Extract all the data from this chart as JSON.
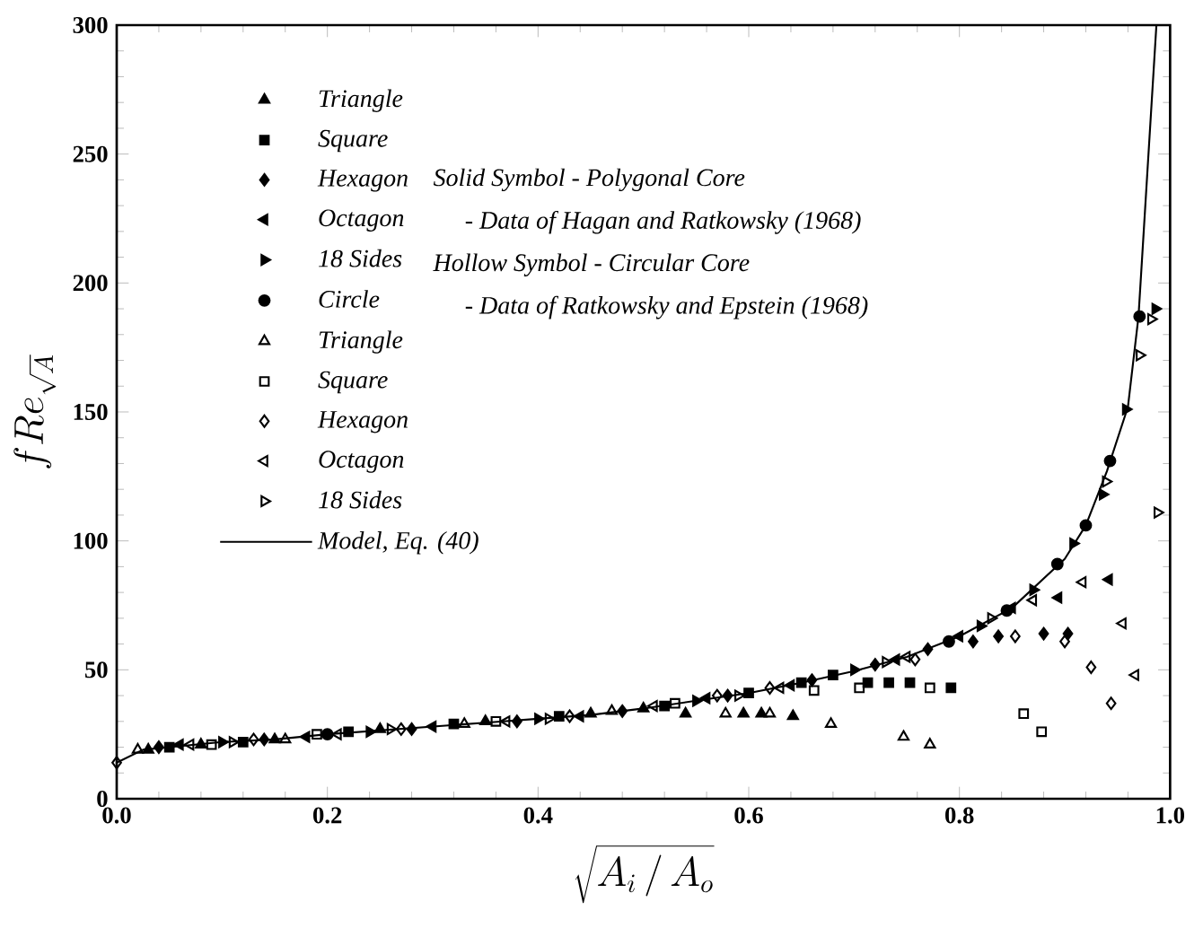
{
  "chart_data": {
    "type": "scatter",
    "xlabel": "\\sqrt{A_i\\,/\\,A_o}",
    "ylabel": "fRe_{\\sqrt{A}}",
    "xlim": [
      0,
      1.0
    ],
    "ylim": [
      0,
      300
    ],
    "xticks": [
      {
        "value": 0,
        "label": "0.0"
      },
      {
        "value": 0.2,
        "label": "0.2"
      },
      {
        "value": 0.4,
        "label": "0.4"
      },
      {
        "value": 0.6,
        "label": "0.6"
      },
      {
        "value": 0.8,
        "label": "0.8"
      },
      {
        "value": 1.0,
        "label": "1.0"
      }
    ],
    "yticks": [
      0,
      50,
      100,
      150,
      200,
      250,
      300
    ],
    "legend": "top left",
    "annotations": [
      "Solid Symbol - Polygonal Core",
      "- Data of Hagan and Ratkowsky (1968)",
      "Hollow Symbol - Circular Core",
      "- Data of Ratkowsky and Epstein (1968)"
    ],
    "series": [
      {
        "name": "Triangle",
        "color": "#000000",
        "marker": "triangle",
        "x": [
          0.03,
          0.08,
          0.15,
          0.25,
          0.35,
          0.45,
          0.5,
          0.54,
          0.595,
          0.612,
          0.642
        ],
        "values": [
          19,
          21,
          23,
          27,
          30,
          33,
          35,
          33,
          33,
          33,
          32
        ]
      },
      {
        "name": "Square",
        "color": "#000000",
        "marker": "square",
        "x": [
          0.05,
          0.12,
          0.22,
          0.32,
          0.42,
          0.52,
          0.6,
          0.65,
          0.68,
          0.713,
          0.733,
          0.753,
          0.792
        ],
        "values": [
          20,
          22,
          26,
          29,
          32,
          36,
          41,
          45,
          48,
          45,
          45,
          45,
          43
        ]
      },
      {
        "name": "Hexagon",
        "color": "#000000",
        "marker": "diamond",
        "x": [
          0.04,
          0.14,
          0.28,
          0.38,
          0.48,
          0.58,
          0.66,
          0.72,
          0.77,
          0.813,
          0.837,
          0.88,
          0.903
        ],
        "values": [
          20,
          23,
          27,
          30,
          34,
          40,
          46,
          52,
          58,
          61,
          63,
          64,
          64
        ]
      },
      {
        "name": "Octagon",
        "color": "#000000",
        "marker": "triangle-left",
        "x": [
          0.06,
          0.18,
          0.3,
          0.44,
          0.56,
          0.64,
          0.74,
          0.8,
          0.85,
          0.894,
          0.942
        ],
        "values": [
          21,
          24,
          28,
          32,
          39,
          44,
          54,
          63,
          74,
          78,
          85
        ]
      },
      {
        "name": "18 Sides",
        "color": "#000000",
        "marker": "triangle-right",
        "x": [
          0.1,
          0.24,
          0.4,
          0.55,
          0.7,
          0.82,
          0.87,
          0.908,
          0.936,
          0.958,
          0.986
        ],
        "values": [
          22,
          26,
          31,
          38,
          50,
          67,
          81,
          99,
          118,
          151,
          190
        ]
      },
      {
        "name": "Circle",
        "color": "#000000",
        "marker": "circle",
        "x": [
          0.2,
          0.5,
          0.7,
          0.79,
          0.845,
          0.893,
          0.92,
          0.943,
          0.971
        ],
        "values": [
          25,
          null,
          null,
          61,
          73,
          91,
          106,
          131,
          187
        ]
      },
      {
        "name": "Triangle",
        "color": "#000000",
        "marker": "triangle-open",
        "x": [
          0.02,
          0.16,
          0.33,
          0.47,
          0.578,
          0.62,
          0.678,
          0.747,
          0.772
        ],
        "values": [
          19,
          23,
          29,
          34,
          33,
          33,
          29,
          24,
          21
        ]
      },
      {
        "name": "Square",
        "color": "#000000",
        "marker": "square-open",
        "x": [
          0.09,
          0.19,
          0.36,
          0.53,
          0.662,
          0.705,
          0.772,
          0.861,
          0.878
        ],
        "values": [
          21,
          25,
          30,
          37,
          42,
          43,
          43,
          33,
          26
        ]
      },
      {
        "name": "Hexagon",
        "color": "#000000",
        "marker": "diamond-open",
        "x": [
          0,
          0.13,
          0.27,
          0.43,
          0.57,
          0.62,
          0.758,
          0.853,
          0.9,
          0.925,
          0.944
        ],
        "values": [
          14,
          23,
          27,
          32,
          40,
          43,
          54,
          63,
          61,
          51,
          37
        ]
      },
      {
        "name": "Octagon",
        "color": "#000000",
        "marker": "triangle-left-open",
        "x": [
          0.07,
          0.21,
          0.37,
          0.51,
          0.63,
          0.75,
          0.87,
          0.917,
          0.955,
          0.967
        ],
        "values": [
          21,
          25,
          30,
          36,
          43,
          55,
          77,
          84,
          68,
          48
        ]
      },
      {
        "name": "18 Sides",
        "color": "#000000",
        "marker": "triangle-right-open",
        "x": [
          0.11,
          0.26,
          0.41,
          0.59,
          0.73,
          0.83,
          0.939,
          0.971,
          0.982,
          0.988
        ],
        "values": [
          22,
          27,
          31,
          40,
          53,
          70,
          123,
          172,
          186,
          111
        ]
      },
      {
        "name": "Model, Eq. (40)",
        "type": "line",
        "color": "#000000",
        "marker": "none",
        "line_style": "solid",
        "x": [
          0,
          0.025,
          0.05,
          0.1,
          0.15,
          0.2,
          0.25,
          0.3,
          0.35,
          0.4,
          0.45,
          0.5,
          0.55,
          0.6,
          0.65,
          0.7,
          0.75,
          0.8,
          0.85,
          0.9,
          0.92,
          0.94,
          0.96,
          0.97,
          0.987
        ],
        "values": [
          14,
          19,
          20,
          22,
          23,
          25,
          26.5,
          28,
          29.5,
          31,
          32.5,
          35,
          38,
          41,
          45,
          49.5,
          55,
          63,
          74,
          93,
          106,
          127,
          152,
          187,
          300
        ]
      }
    ]
  }
}
